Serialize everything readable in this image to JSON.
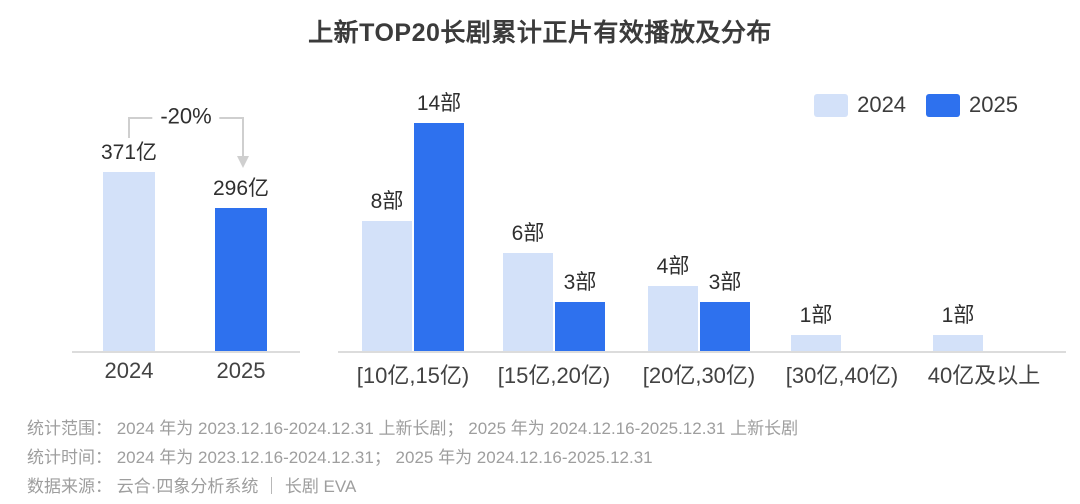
{
  "title": "上新TOP20长剧累计正片有效播放及分布",
  "colors": {
    "y2024": "#d3e1f9",
    "y2025": "#2e71ee",
    "axis": "#dcdcdc",
    "annotation_line": "#cfcfcf"
  },
  "legend": [
    {
      "label": "2024",
      "color_key": "y2024"
    },
    {
      "label": "2025",
      "color_key": "y2025"
    }
  ],
  "chart_data": [
    {
      "name": "cumulative-effective-plays",
      "type": "bar",
      "categories": [
        "2024",
        "2025"
      ],
      "values": [
        371,
        296
      ],
      "unit": "亿",
      "value_labels": [
        "371亿",
        "296亿"
      ],
      "color_keys": [
        "y2024",
        "y2025"
      ],
      "annotation": {
        "text": "-20%",
        "from": "2024",
        "to": "2025"
      },
      "y_axis_visible": false
    },
    {
      "name": "plays-distribution",
      "type": "bar",
      "categories": [
        "[10亿,15亿)",
        "[15亿,20亿)",
        "[20亿,30亿)",
        "[30亿,40亿)",
        "40亿及以上"
      ],
      "unit": "部",
      "series": [
        {
          "name": "2024",
          "color_key": "y2024",
          "values": [
            8,
            6,
            4,
            1,
            1
          ],
          "value_labels": [
            "8部",
            "6部",
            "4部",
            "1部",
            "1部"
          ]
        },
        {
          "name": "2025",
          "color_key": "y2025",
          "values": [
            14,
            3,
            3,
            null,
            null
          ],
          "value_labels": [
            "14部",
            "3部",
            "3部",
            null,
            null
          ]
        }
      ],
      "ylim": [
        0,
        15
      ],
      "y_axis_visible": false,
      "legend_position": "top-right"
    }
  ],
  "footer": [
    "统计范围： 2024 年为 2023.12.16-2024.12.31 上新长剧； 2025 年为 2024.12.16-2025.12.31 上新长剧",
    "统计时间： 2024 年为 2023.12.16-2024.12.31； 2025 年为 2024.12.16-2025.12.31",
    "数据来源： 云合·四象分析系统 ｜ 长剧 EVA"
  ]
}
